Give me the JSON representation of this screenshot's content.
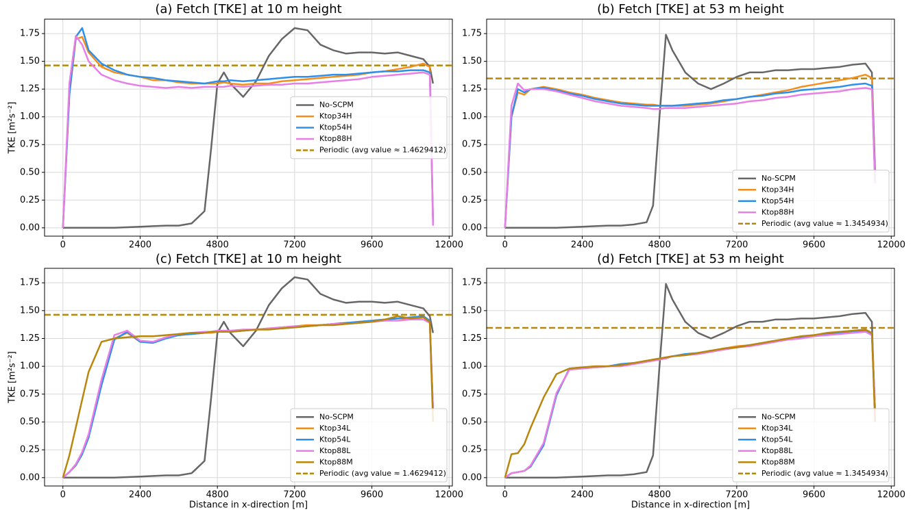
{
  "chart_data": [
    {
      "type": "line",
      "title": "(a) Fetch [TKE] at 10 m height",
      "ylabel": "TKE [m²s⁻²]",
      "x": [
        0,
        200,
        400,
        600,
        800,
        1200,
        1600,
        2000,
        2400,
        2800,
        3200,
        3600,
        4000,
        4400,
        4600,
        4800,
        5000,
        5200,
        5600,
        6000,
        6400,
        6800,
        7200,
        7600,
        8000,
        8400,
        8800,
        9200,
        9600,
        10000,
        10400,
        10800,
        11200,
        11400,
        11500
      ],
      "series": [
        {
          "name": "No-SCPM",
          "color": "#666666",
          "values": [
            0,
            0,
            0,
            0,
            0,
            0,
            0,
            0.005,
            0.01,
            0.015,
            0.02,
            0.02,
            0.04,
            0.15,
            0.7,
            1.3,
            1.4,
            1.3,
            1.18,
            1.32,
            1.55,
            1.7,
            1.8,
            1.78,
            1.65,
            1.6,
            1.57,
            1.58,
            1.58,
            1.57,
            1.58,
            1.55,
            1.52,
            1.45,
            1.3
          ]
        },
        {
          "name": "Ktop34H",
          "color": "#f28e1c",
          "values": [
            0,
            1.2,
            1.7,
            1.72,
            1.58,
            1.45,
            1.4,
            1.38,
            1.36,
            1.33,
            1.33,
            1.31,
            1.3,
            1.3,
            1.3,
            1.3,
            1.31,
            1.3,
            1.29,
            1.3,
            1.3,
            1.32,
            1.33,
            1.34,
            1.35,
            1.36,
            1.37,
            1.38,
            1.4,
            1.41,
            1.43,
            1.45,
            1.48,
            1.45,
            0.05
          ]
        },
        {
          "name": "Ktop54H",
          "color": "#2e8fe8",
          "values": [
            0,
            1.2,
            1.72,
            1.8,
            1.6,
            1.48,
            1.42,
            1.38,
            1.36,
            1.35,
            1.33,
            1.32,
            1.31,
            1.3,
            1.31,
            1.32,
            1.32,
            1.33,
            1.32,
            1.33,
            1.34,
            1.35,
            1.36,
            1.36,
            1.37,
            1.38,
            1.38,
            1.39,
            1.4,
            1.41,
            1.41,
            1.42,
            1.42,
            1.4,
            0.05
          ]
        },
        {
          "name": "Ktop88H",
          "color": "#e77fe6",
          "values": [
            0,
            1.3,
            1.73,
            1.65,
            1.5,
            1.38,
            1.33,
            1.3,
            1.28,
            1.27,
            1.26,
            1.27,
            1.26,
            1.27,
            1.27,
            1.27,
            1.27,
            1.28,
            1.27,
            1.28,
            1.29,
            1.29,
            1.3,
            1.3,
            1.31,
            1.32,
            1.33,
            1.34,
            1.36,
            1.37,
            1.38,
            1.39,
            1.4,
            1.38,
            0.02
          ]
        }
      ],
      "reference": {
        "name": "Periodic (avg value ≈ 1.4629412)",
        "value": 1.4629412,
        "color": "#b8860b"
      },
      "xlim": [
        -570,
        12100
      ],
      "ylim": [
        -0.075,
        1.88
      ],
      "xticks": [
        0,
        2400,
        4800,
        7200,
        9600,
        12000
      ],
      "yticks": [
        {
          "value": 0,
          "label": "0.00"
        },
        0.25,
        {
          "value": 0.5,
          "label": "0.50"
        },
        0.75,
        {
          "value": 1,
          "label": "1.00"
        },
        1.25,
        {
          "value": 1.5,
          "label": "1.50"
        },
        1.75
      ],
      "grid": true,
      "legend": "center right"
    },
    {
      "type": "line",
      "title": "(b) Fetch [TKE] at 53 m height",
      "x": [
        0,
        200,
        400,
        600,
        800,
        1200,
        1600,
        2000,
        2400,
        2800,
        3200,
        3600,
        4000,
        4400,
        4600,
        4800,
        5000,
        5200,
        5600,
        6000,
        6400,
        6800,
        7200,
        7600,
        8000,
        8400,
        8800,
        9200,
        9600,
        10000,
        10400,
        10800,
        11200,
        11400,
        11500
      ],
      "series": [
        {
          "name": "No-SCPM",
          "color": "#666666",
          "values": [
            0,
            0,
            0,
            0,
            0,
            0,
            0,
            0.005,
            0.01,
            0.015,
            0.02,
            0.02,
            0.03,
            0.05,
            0.2,
            1.0,
            1.74,
            1.6,
            1.4,
            1.3,
            1.25,
            1.3,
            1.36,
            1.4,
            1.4,
            1.42,
            1.42,
            1.43,
            1.43,
            1.44,
            1.45,
            1.47,
            1.48,
            1.4,
            0.5
          ]
        },
        {
          "name": "Ktop34H",
          "color": "#f28e1c",
          "values": [
            0,
            1.0,
            1.22,
            1.2,
            1.25,
            1.27,
            1.25,
            1.22,
            1.2,
            1.17,
            1.15,
            1.13,
            1.12,
            1.11,
            1.11,
            1.1,
            1.1,
            1.1,
            1.1,
            1.11,
            1.12,
            1.14,
            1.16,
            1.18,
            1.2,
            1.22,
            1.24,
            1.27,
            1.29,
            1.31,
            1.33,
            1.35,
            1.38,
            1.35,
            0.4
          ]
        },
        {
          "name": "Ktop54H",
          "color": "#2e8fe8",
          "values": [
            0,
            1.0,
            1.25,
            1.22,
            1.25,
            1.26,
            1.24,
            1.21,
            1.19,
            1.16,
            1.14,
            1.12,
            1.11,
            1.1,
            1.1,
            1.1,
            1.1,
            1.1,
            1.11,
            1.12,
            1.13,
            1.15,
            1.16,
            1.18,
            1.19,
            1.21,
            1.22,
            1.24,
            1.25,
            1.26,
            1.27,
            1.29,
            1.3,
            1.28,
            0.4
          ]
        },
        {
          "name": "Ktop88H",
          "color": "#e77fe6",
          "values": [
            0,
            1.1,
            1.3,
            1.24,
            1.25,
            1.25,
            1.23,
            1.2,
            1.17,
            1.14,
            1.12,
            1.1,
            1.09,
            1.08,
            1.07,
            1.07,
            1.08,
            1.08,
            1.08,
            1.09,
            1.1,
            1.11,
            1.12,
            1.14,
            1.15,
            1.17,
            1.18,
            1.2,
            1.21,
            1.22,
            1.23,
            1.25,
            1.26,
            1.25,
            0.4
          ]
        }
      ],
      "reference": {
        "name": "Periodic (avg value ≈ 1.3454934)",
        "value": 1.3454934,
        "color": "#b8860b"
      },
      "xlim": [
        -570,
        12100
      ],
      "ylim": [
        -0.075,
        1.88
      ],
      "xticks": [
        0,
        2400,
        4800,
        7200,
        9600,
        12000
      ],
      "yticks": [
        {
          "value": 0,
          "label": "0.00"
        },
        0.25,
        {
          "value": 0.5,
          "label": "0.50"
        },
        0.75,
        {
          "value": 1,
          "label": "1.00"
        },
        1.25,
        {
          "value": 1.5,
          "label": "1.50"
        },
        1.75
      ],
      "grid": true,
      "legend": "lower right"
    },
    {
      "type": "line",
      "title": "(c) Fetch [TKE] at 10 m height",
      "ylabel": "TKE [m²s⁻²]",
      "xlabel": "Distance in x-direction [m]",
      "x": [
        0,
        200,
        400,
        600,
        800,
        1200,
        1600,
        2000,
        2400,
        2800,
        3200,
        3600,
        4000,
        4400,
        4600,
        4800,
        5000,
        5200,
        5600,
        6000,
        6400,
        6800,
        7200,
        7600,
        8000,
        8400,
        8800,
        9200,
        9600,
        10000,
        10400,
        10800,
        11200,
        11400,
        11500
      ],
      "series": [
        {
          "name": "No-SCPM",
          "color": "#666666",
          "values": [
            0,
            0,
            0,
            0,
            0,
            0,
            0,
            0.005,
            0.01,
            0.015,
            0.02,
            0.02,
            0.04,
            0.15,
            0.7,
            1.3,
            1.4,
            1.3,
            1.18,
            1.32,
            1.55,
            1.7,
            1.8,
            1.78,
            1.65,
            1.6,
            1.57,
            1.58,
            1.58,
            1.57,
            1.58,
            1.55,
            1.52,
            1.45,
            1.3
          ]
        },
        {
          "name": "Ktop34L",
          "color": "#f28e1c",
          "values": [
            0,
            0.05,
            0.12,
            0.22,
            0.38,
            0.85,
            1.25,
            1.3,
            1.22,
            1.22,
            1.26,
            1.28,
            1.29,
            1.3,
            1.3,
            1.31,
            1.31,
            1.31,
            1.32,
            1.33,
            1.34,
            1.35,
            1.36,
            1.37,
            1.37,
            1.38,
            1.39,
            1.4,
            1.41,
            1.42,
            1.43,
            1.43,
            1.44,
            1.4,
            0.6
          ]
        },
        {
          "name": "Ktop54L",
          "color": "#2e8fe8",
          "values": [
            0,
            0.05,
            0.11,
            0.21,
            0.36,
            0.83,
            1.24,
            1.31,
            1.22,
            1.21,
            1.25,
            1.28,
            1.29,
            1.3,
            1.31,
            1.31,
            1.32,
            1.31,
            1.32,
            1.33,
            1.34,
            1.34,
            1.35,
            1.36,
            1.37,
            1.38,
            1.39,
            1.4,
            1.41,
            1.42,
            1.43,
            1.44,
            1.45,
            1.41,
            0.6
          ]
        },
        {
          "name": "Ktop88L",
          "color": "#e77fe6",
          "values": [
            0,
            0.05,
            0.12,
            0.23,
            0.39,
            0.88,
            1.28,
            1.32,
            1.23,
            1.22,
            1.26,
            1.29,
            1.3,
            1.31,
            1.31,
            1.32,
            1.32,
            1.32,
            1.33,
            1.33,
            1.34,
            1.35,
            1.36,
            1.36,
            1.37,
            1.38,
            1.38,
            1.39,
            1.4,
            1.41,
            1.41,
            1.42,
            1.42,
            1.39,
            0.6
          ]
        },
        {
          "name": "Ktop88M",
          "color": "#b8860b",
          "values": [
            0,
            0.2,
            0.45,
            0.7,
            0.95,
            1.22,
            1.25,
            1.26,
            1.27,
            1.27,
            1.28,
            1.29,
            1.3,
            1.3,
            1.31,
            1.31,
            1.31,
            1.31,
            1.32,
            1.33,
            1.33,
            1.34,
            1.35,
            1.36,
            1.37,
            1.37,
            1.38,
            1.39,
            1.4,
            1.42,
            1.45,
            1.43,
            1.44,
            1.4,
            0.5
          ]
        }
      ],
      "reference": {
        "name": "Periodic (avg value ≈ 1.4629412)",
        "value": 1.4629412,
        "color": "#b8860b"
      },
      "xlim": [
        -570,
        12100
      ],
      "ylim": [
        -0.075,
        1.88
      ],
      "xticks": [
        0,
        2400,
        4800,
        7200,
        9600,
        12000
      ],
      "yticks": [
        {
          "value": 0,
          "label": "0.00"
        },
        0.25,
        {
          "value": 0.5,
          "label": "0.50"
        },
        0.75,
        {
          "value": 1,
          "label": "1.00"
        },
        1.25,
        {
          "value": 1.5,
          "label": "1.50"
        },
        1.75
      ],
      "grid": true,
      "legend": "lower right"
    },
    {
      "type": "line",
      "title": "(d) Fetch [TKE] at 53 m height",
      "xlabel": "Distance in x-direction [m]",
      "x": [
        0,
        200,
        400,
        600,
        800,
        1200,
        1600,
        2000,
        2400,
        2800,
        3200,
        3600,
        4000,
        4400,
        4600,
        4800,
        5000,
        5200,
        5600,
        6000,
        6400,
        6800,
        7200,
        7600,
        8000,
        8400,
        8800,
        9200,
        9600,
        10000,
        10400,
        10800,
        11200,
        11400,
        11500
      ],
      "series": [
        {
          "name": "No-SCPM",
          "color": "#666666",
          "values": [
            0,
            0,
            0,
            0,
            0,
            0,
            0,
            0.005,
            0.01,
            0.015,
            0.02,
            0.02,
            0.03,
            0.05,
            0.2,
            1.0,
            1.74,
            1.6,
            1.4,
            1.3,
            1.25,
            1.3,
            1.36,
            1.4,
            1.4,
            1.42,
            1.42,
            1.43,
            1.43,
            1.44,
            1.45,
            1.47,
            1.48,
            1.4,
            0.5
          ]
        },
        {
          "name": "Ktop34L",
          "color": "#f28e1c",
          "values": [
            0,
            0.04,
            0.05,
            0.06,
            0.1,
            0.3,
            0.75,
            0.97,
            0.99,
            1.0,
            1.0,
            1.01,
            1.03,
            1.05,
            1.06,
            1.07,
            1.08,
            1.09,
            1.1,
            1.12,
            1.14,
            1.16,
            1.18,
            1.19,
            1.21,
            1.23,
            1.25,
            1.27,
            1.28,
            1.29,
            1.3,
            1.31,
            1.32,
            1.3,
            0.6
          ]
        },
        {
          "name": "Ktop54L",
          "color": "#2e8fe8",
          "values": [
            0,
            0.04,
            0.05,
            0.06,
            0.1,
            0.29,
            0.74,
            0.98,
            0.99,
            0.99,
            1.0,
            1.02,
            1.03,
            1.04,
            1.06,
            1.07,
            1.08,
            1.09,
            1.11,
            1.12,
            1.14,
            1.15,
            1.17,
            1.19,
            1.21,
            1.23,
            1.24,
            1.26,
            1.28,
            1.29,
            1.3,
            1.31,
            1.32,
            1.29,
            0.6
          ]
        },
        {
          "name": "Ktop88L",
          "color": "#e77fe6",
          "values": [
            0,
            0.04,
            0.05,
            0.06,
            0.11,
            0.31,
            0.76,
            0.97,
            0.98,
            0.99,
            1.0,
            1.0,
            1.02,
            1.04,
            1.05,
            1.06,
            1.07,
            1.09,
            1.1,
            1.11,
            1.13,
            1.15,
            1.17,
            1.18,
            1.2,
            1.22,
            1.24,
            1.25,
            1.27,
            1.28,
            1.29,
            1.3,
            1.31,
            1.28,
            0.6
          ]
        },
        {
          "name": "Ktop88M",
          "color": "#b8860b",
          "values": [
            0,
            0.21,
            0.22,
            0.3,
            0.45,
            0.72,
            0.93,
            0.98,
            0.99,
            1.0,
            1.0,
            1.01,
            1.03,
            1.05,
            1.06,
            1.07,
            1.08,
            1.09,
            1.1,
            1.12,
            1.14,
            1.16,
            1.17,
            1.19,
            1.21,
            1.23,
            1.25,
            1.27,
            1.28,
            1.3,
            1.31,
            1.32,
            1.33,
            1.3,
            0.5
          ]
        }
      ],
      "reference": {
        "name": "Periodic (avg value ≈ 1.3454934)",
        "value": 1.3454934,
        "color": "#b8860b"
      },
      "xlim": [
        -570,
        12100
      ],
      "ylim": [
        -0.075,
        1.88
      ],
      "xticks": [
        0,
        2400,
        4800,
        7200,
        9600,
        12000
      ],
      "yticks": [
        {
          "value": 0,
          "label": "0.00"
        },
        0.25,
        {
          "value": 0.5,
          "label": "0.50"
        },
        0.75,
        {
          "value": 1,
          "label": "1.00"
        },
        1.25,
        {
          "value": 1.5,
          "label": "1.50"
        },
        1.75
      ],
      "grid": true,
      "legend": "lower right"
    }
  ]
}
